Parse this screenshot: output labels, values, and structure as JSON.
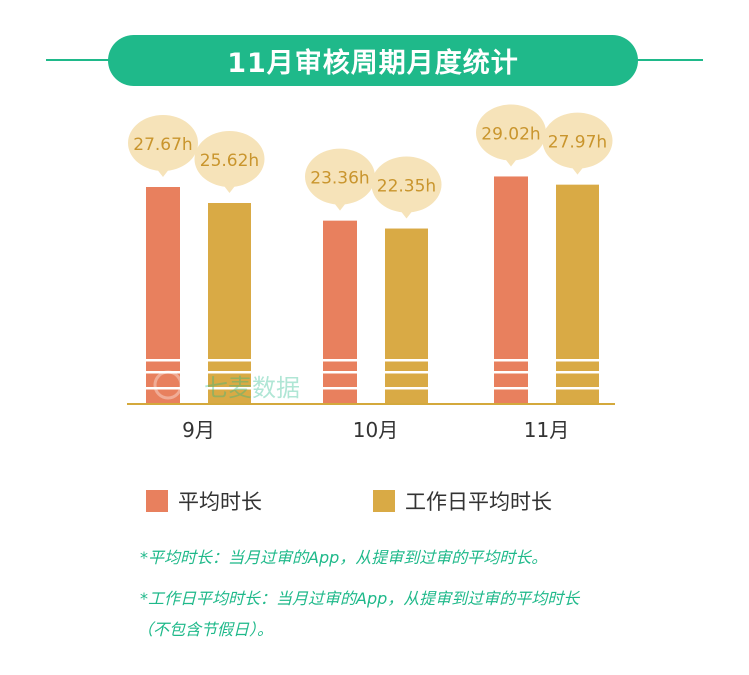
{
  "title": "11月审核周期月度统计",
  "colors": {
    "accent": "#1fb98a",
    "avg": "#e8805e",
    "workday": "#d9aa45",
    "bubble": "#f6e3b9",
    "bubble_text": "#c9952d",
    "axis": "#d4a93c"
  },
  "chart_data": {
    "type": "bar",
    "categories": [
      "9月",
      "10月",
      "11月"
    ],
    "series": [
      {
        "name": "平均时长",
        "values": [
          27.67,
          23.36,
          29.02
        ],
        "labels": [
          "27.67h",
          "23.36h",
          "29.02h"
        ]
      },
      {
        "name": "工作日平均时长",
        "values": [
          25.62,
          22.35,
          27.97
        ],
        "labels": [
          "25.62h",
          "22.35h",
          "27.97h"
        ]
      }
    ],
    "legend_position": "bottom"
  },
  "watermark": "七麦数据",
  "notes": {
    "line1": "*平均时长：当月过审的App，从提审到过审的平均时长。",
    "line2": "*工作日平均时长：当月过审的App，从提审到过审的平均时长",
    "line3": "（不包含节假日）。"
  }
}
